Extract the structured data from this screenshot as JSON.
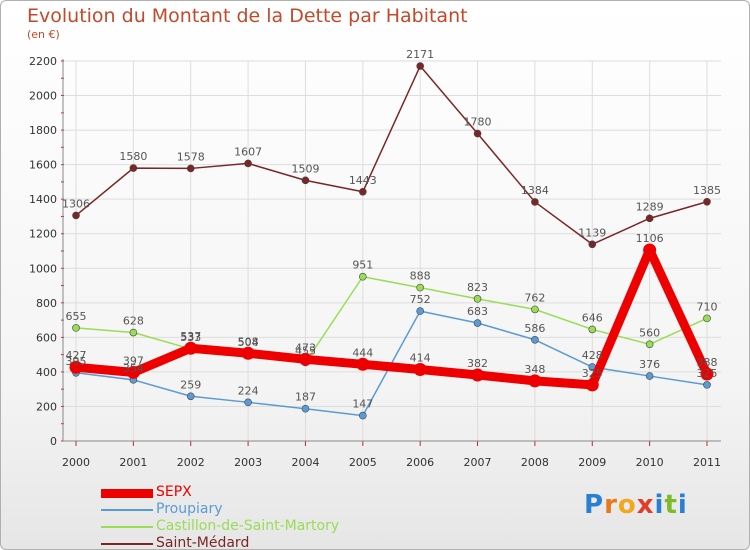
{
  "chart_data": {
    "type": "line",
    "title": "Evolution du Montant de la Dette par Habitant",
    "subtitle": "(en €)",
    "categories": [
      "2000",
      "2001",
      "2002",
      "2003",
      "2004",
      "2005",
      "2006",
      "2007",
      "2008",
      "2009",
      "2010",
      "2011"
    ],
    "ylim": [
      0,
      2200
    ],
    "yticks": [
      0,
      200,
      400,
      600,
      800,
      1000,
      1200,
      1400,
      1600,
      1800,
      2000,
      2200
    ],
    "grid": true,
    "legend_position": "bottom-left",
    "series": [
      {
        "name": "Saint-Médard",
        "color": "#7a2626",
        "values": [
          1306,
          1580,
          1578,
          1607,
          1509,
          1443,
          2171,
          1780,
          1384,
          1139,
          1289,
          1385
        ],
        "labels": [
          "1306",
          "1580",
          "1578",
          "1607",
          "1509",
          "1443",
          "2171",
          "1780",
          "1384",
          "1139",
          "1289",
          "1385"
        ]
      },
      {
        "name": "Castillon-de-Saint-Martory",
        "color": "#99dd55",
        "values": [
          655,
          628,
          533,
          504,
          455,
          951,
          888,
          823,
          762,
          646,
          560,
          710
        ],
        "labels": [
          "655",
          "628",
          "533",
          "504",
          "455",
          "951",
          "888",
          "823",
          "762",
          "646",
          "560",
          "710"
        ]
      },
      {
        "name": "Proupiary",
        "color": "#5b9bd5",
        "values": [
          395,
          354,
          259,
          224,
          187,
          147,
          752,
          683,
          586,
          428,
          376,
          325
        ],
        "labels": [
          "395",
          "354",
          "259",
          "224",
          "187",
          "147",
          "752",
          "683",
          "586",
          "428",
          "376",
          "325"
        ]
      },
      {
        "name": "SEPX",
        "color": "#ee0000",
        "values": [
          427,
          397,
          537,
          508,
          473,
          444,
          414,
          382,
          348,
          325,
          1106,
          388
        ],
        "labels": [
          "427",
          "397",
          "537",
          "508",
          "473",
          "444",
          "414",
          "382",
          "348",
          "325",
          "1106",
          "388"
        ]
      }
    ]
  },
  "legend": [
    "SEPX",
    "Proupiary",
    "Castillon-de-Saint-Martory",
    "Saint-Médard"
  ],
  "legend_colors": [
    "#ee0000",
    "#5b9bd5",
    "#99dd55",
    "#7a2626"
  ],
  "logo": {
    "text": "Proxiti",
    "letters": [
      "P",
      "r",
      "o",
      "x",
      "i",
      "t",
      "i"
    ],
    "colors": [
      "#2a7fd4",
      "#e8781a",
      "#f2a81d",
      "#e23c2b",
      "#2a7fd4",
      "#7cbc2a",
      "#2a7fd4"
    ]
  }
}
